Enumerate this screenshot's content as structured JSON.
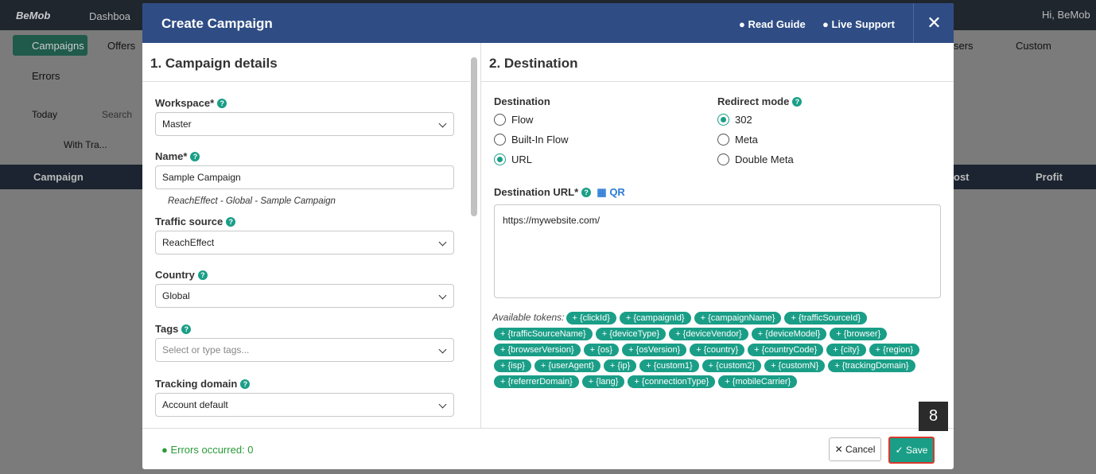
{
  "app": {
    "logo": "BeMob",
    "tab": "Dashboa",
    "user": "Hi, BeMob",
    "nav": [
      "Campaigns",
      "Offers",
      "sers",
      "Custom",
      "Errors"
    ],
    "toolbar": {
      "date": "Today",
      "search": "Search",
      "filter": "With Tra..."
    },
    "columns": [
      "Campaign",
      "ost",
      "Profit"
    ]
  },
  "modal": {
    "title": "Create Campaign",
    "read_guide": "Read Guide",
    "live_support": "Live Support"
  },
  "left": {
    "heading": "1. Campaign details",
    "fields": [
      {
        "label": "Workspace*",
        "value": "Master"
      },
      {
        "label": "Name*",
        "value": "Sample Campaign",
        "hint": "ReachEffect - Global - Sample Campaign"
      },
      {
        "label": "Traffic source",
        "value": "ReachEffect"
      },
      {
        "label": "Country",
        "value": "Global"
      },
      {
        "label": "Tags",
        "placeholder": "Select or type tags..."
      },
      {
        "label": "Tracking domain",
        "value": "Account default"
      }
    ]
  },
  "right": {
    "heading": "2. Destination",
    "destination": {
      "label": "Destination",
      "options": [
        "Flow",
        "Built-In Flow",
        "URL"
      ],
      "selected": 2
    },
    "redirect": {
      "label": "Redirect mode",
      "options": [
        "302",
        "Meta",
        "Double Meta"
      ],
      "selected": 0
    },
    "url_label": "Destination URL*",
    "qr": "QR",
    "url": "https://mywebsite.com/",
    "tokens_label": "Available tokens:",
    "tokens": [
      "+ {clickId}",
      "+ {campaignId}",
      "+ {campaignName}",
      "+ {trafficSourceId}",
      "+ {trafficSourceName}",
      "+ {deviceType}",
      "+ {deviceVendor}",
      "+ {deviceModel}",
      "+ {browser}",
      "+ {browserVersion}",
      "+ {os}",
      "+ {osVersion}",
      "+ {country}",
      "+ {countryCode}",
      "+ {city}",
      "+ {region}",
      "+ {isp}",
      "+ {userAgent}",
      "+ {ip}",
      "+ {custom1}",
      "+ {custom2}",
      "+ {customN}",
      "+ {trackingDomain}",
      "+ {referrerDomain}",
      "+ {lang}",
      "+ {connectionType}",
      "+ {mobileCarrier}"
    ]
  },
  "footer": {
    "errors": "Errors occurred: 0",
    "cancel": "Cancel",
    "save": "Save",
    "step": "8"
  }
}
